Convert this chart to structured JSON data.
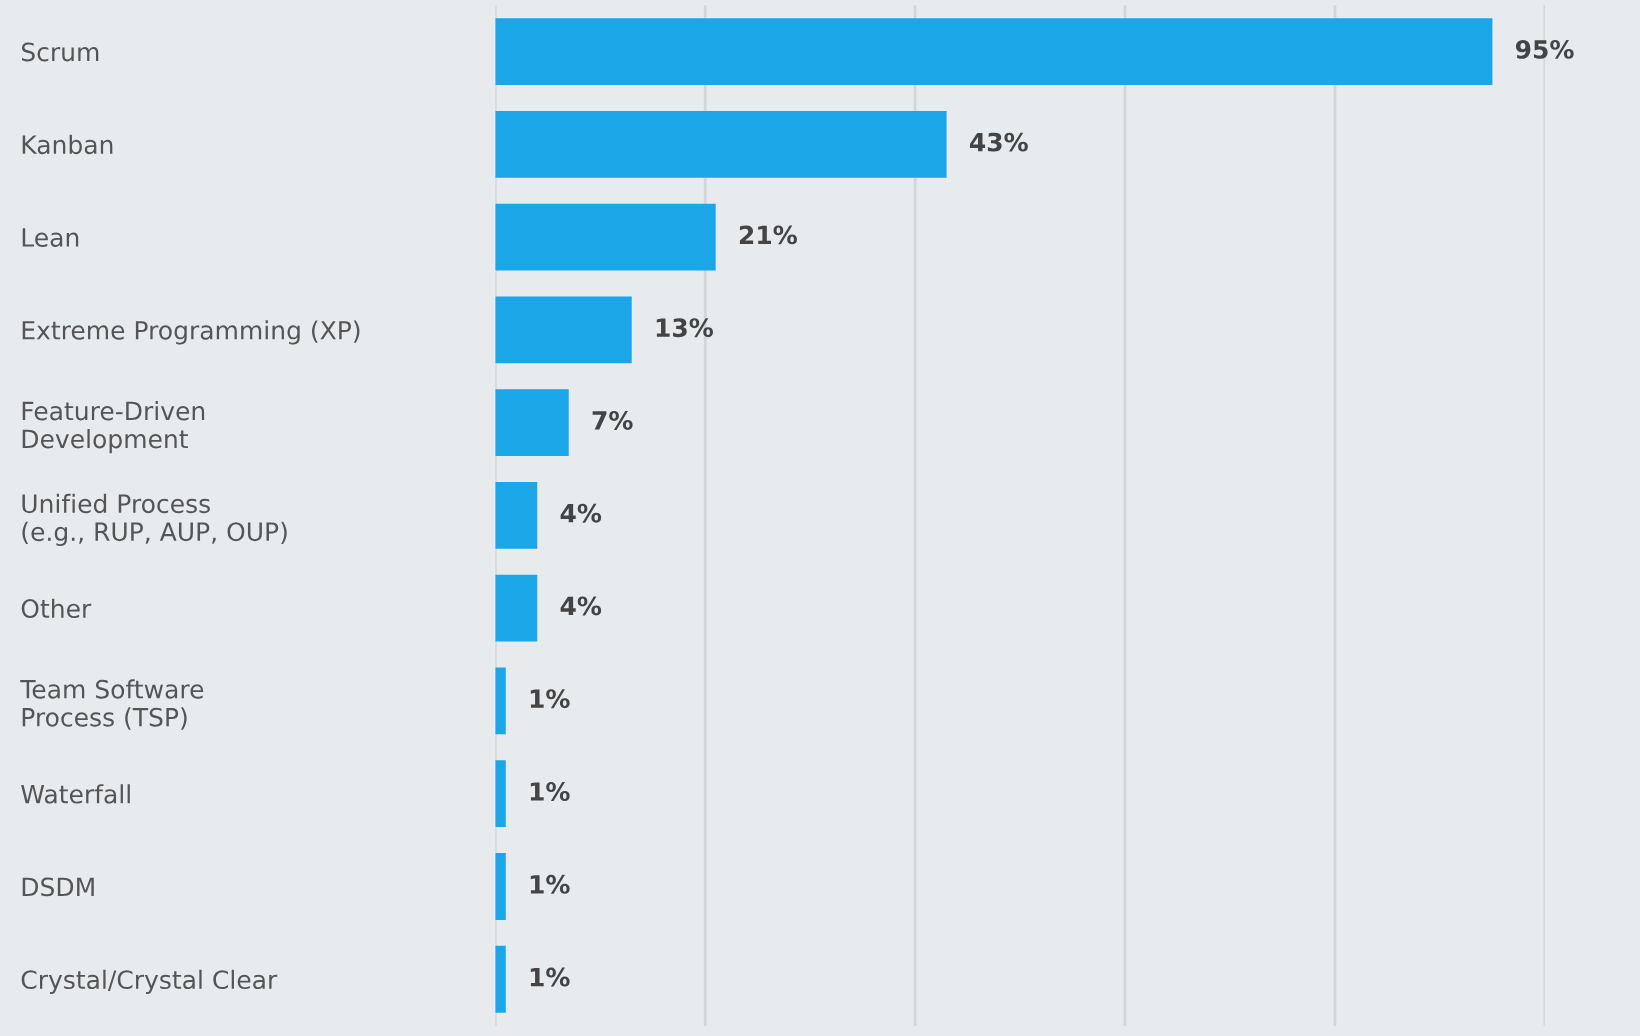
{
  "chart_data": {
    "type": "bar",
    "orientation": "horizontal",
    "categories": [
      "Scrum",
      "Kanban",
      "Lean",
      "Extreme Programming (XP)",
      "Feature-Driven\nDevelopment",
      "Unified Process\n(e.g., RUP, AUP, OUP)",
      "Other",
      "Team Software\nProcess (TSP)",
      "Waterfall",
      "DSDM",
      "Crystal/Crystal Clear"
    ],
    "values": [
      95,
      43,
      21,
      13,
      7,
      4,
      4,
      1,
      1,
      1,
      1
    ],
    "value_labels": [
      "95%",
      "43%",
      "21%",
      "13%",
      "7%",
      "4%",
      "4%",
      "1%",
      "1%",
      "1%",
      "1%"
    ],
    "color": "#1ba6e8",
    "xlim": [
      0,
      100
    ],
    "xticks": [
      {
        "value": 0,
        "label": null
      },
      {
        "value": 20,
        "label": null
      },
      {
        "value": 40,
        "label": null
      },
      {
        "value": 60,
        "label": null
      },
      {
        "value": 80,
        "label": null
      },
      {
        "value": 100,
        "label": null
      }
    ],
    "grid": "x",
    "tick_labels": "y"
  }
}
